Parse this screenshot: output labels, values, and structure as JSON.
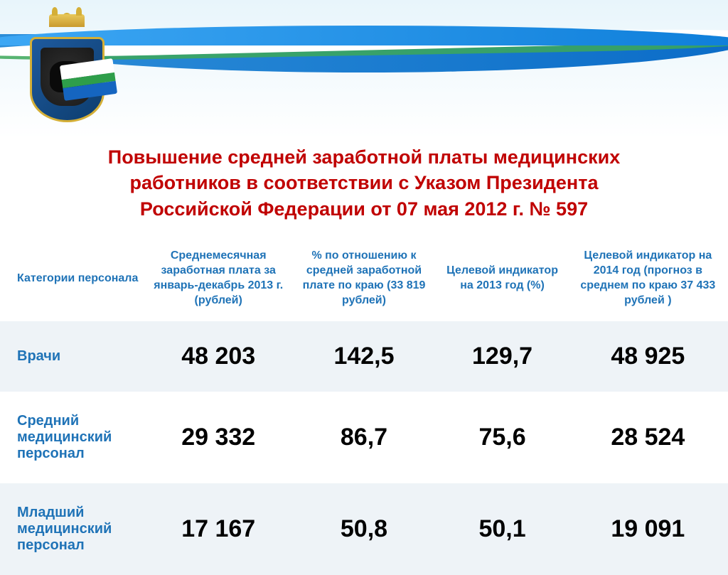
{
  "banner": {
    "flag_colors": [
      "#ffffff",
      "#2e9e4a",
      "#1565c0"
    ],
    "wave_colors": [
      "#3fa9f5",
      "#0d7dd9",
      "#3da858"
    ],
    "emblem_shield_color": "#1e5a9e",
    "emblem_border_color": "#d4af37"
  },
  "title": {
    "line1": "Повышение средней заработной платы медицинских",
    "line2": "работников в соответствии с Указом Президента",
    "line3": "Российской Федерации от 07 мая 2012 г. № 597",
    "color": "#c00000",
    "fontsize": 27
  },
  "table": {
    "header_color": "#1f73b7",
    "header_fontsize": 16,
    "category_color": "#1f73b7",
    "category_fontsize": 20,
    "value_color": "#000000",
    "value_fontsize": 34,
    "row_alt_bg": "#eef3f7",
    "row_bg": "#ffffff",
    "columns": [
      "Категории персонала",
      "Среднемесячная заработная плата за январь-декабрь 2013 г. (рублей)",
      "% по отношению к средней заработной плате по краю (33 819 рублей)",
      "Целевой индикатор на 2013 год (%)",
      "Целевой индикатор на 2014 год (прогноз в среднем по краю 37 433 рублей )"
    ],
    "rows": [
      {
        "category": "Врачи",
        "values": [
          "48 203",
          "142,5",
          "129,7",
          "48 925"
        ]
      },
      {
        "category": "Средний медицинский персонал",
        "values": [
          "29 332",
          "86,7",
          "75,6",
          "28 524"
        ]
      },
      {
        "category": "Младший медицинский персонал",
        "values": [
          "17 167",
          "50,8",
          "50,1",
          "19 091"
        ]
      }
    ]
  }
}
